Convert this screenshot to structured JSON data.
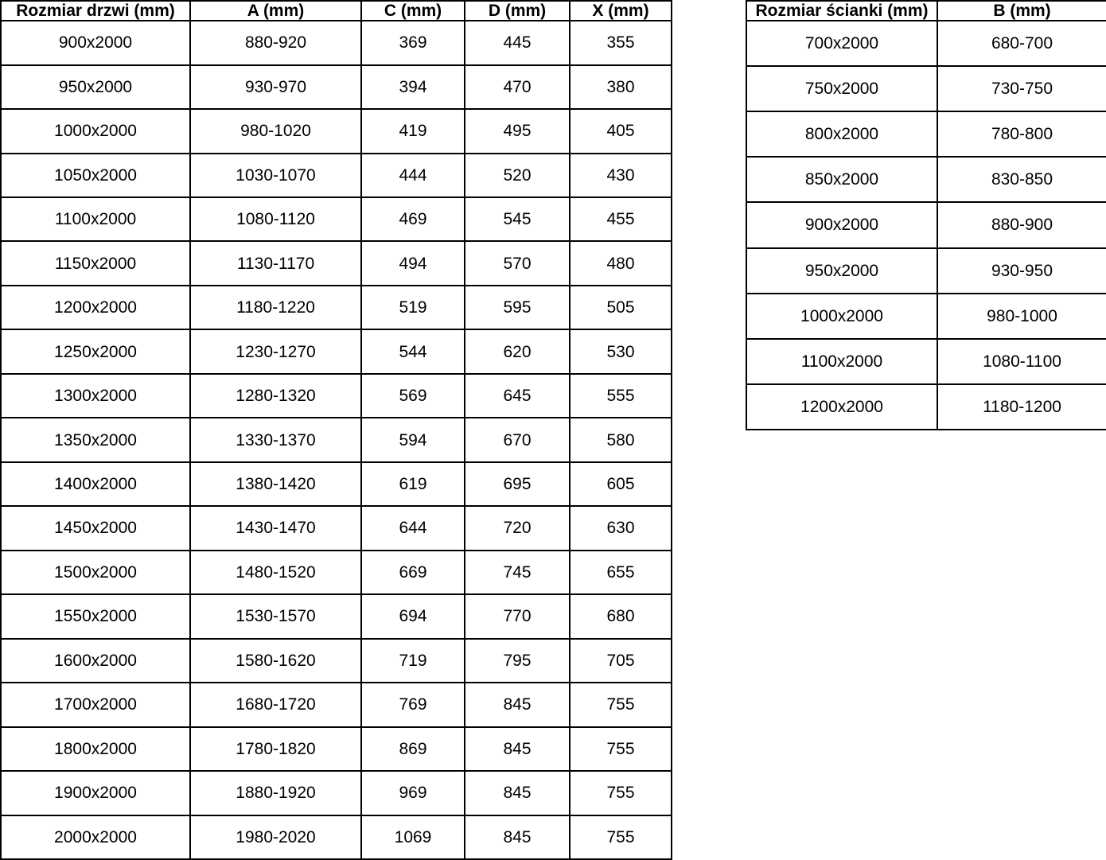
{
  "left_table": {
    "headers": [
      "Rozmiar drzwi (mm)",
      "A (mm)",
      "C (mm)",
      "D (mm)",
      "X (mm)"
    ],
    "rows": [
      [
        "900x2000",
        "880-920",
        "369",
        "445",
        "355"
      ],
      [
        "950x2000",
        "930-970",
        "394",
        "470",
        "380"
      ],
      [
        "1000x2000",
        "980-1020",
        "419",
        "495",
        "405"
      ],
      [
        "1050x2000",
        "1030-1070",
        "444",
        "520",
        "430"
      ],
      [
        "1100x2000",
        "1080-1120",
        "469",
        "545",
        "455"
      ],
      [
        "1150x2000",
        "1130-1170",
        "494",
        "570",
        "480"
      ],
      [
        "1200x2000",
        "1180-1220",
        "519",
        "595",
        "505"
      ],
      [
        "1250x2000",
        "1230-1270",
        "544",
        "620",
        "530"
      ],
      [
        "1300x2000",
        "1280-1320",
        "569",
        "645",
        "555"
      ],
      [
        "1350x2000",
        "1330-1370",
        "594",
        "670",
        "580"
      ],
      [
        "1400x2000",
        "1380-1420",
        "619",
        "695",
        "605"
      ],
      [
        "1450x2000",
        "1430-1470",
        "644",
        "720",
        "630"
      ],
      [
        "1500x2000",
        "1480-1520",
        "669",
        "745",
        "655"
      ],
      [
        "1550x2000",
        "1530-1570",
        "694",
        "770",
        "680"
      ],
      [
        "1600x2000",
        "1580-1620",
        "719",
        "795",
        "705"
      ],
      [
        "1700x2000",
        "1680-1720",
        "769",
        "845",
        "755"
      ],
      [
        "1800x2000",
        "1780-1820",
        "869",
        "845",
        "755"
      ],
      [
        "1900x2000",
        "1880-1920",
        "969",
        "845",
        "755"
      ],
      [
        "2000x2000",
        "1980-2020",
        "1069",
        "845",
        "755"
      ]
    ]
  },
  "right_table": {
    "headers": [
      "Rozmiar ścianki (mm)",
      "B (mm)"
    ],
    "rows": [
      [
        "700x2000",
        "680-700"
      ],
      [
        "750x2000",
        "730-750"
      ],
      [
        "800x2000",
        "780-800"
      ],
      [
        "850x2000",
        "830-850"
      ],
      [
        "900x2000",
        "880-900"
      ],
      [
        "950x2000",
        "930-950"
      ],
      [
        "1000x2000",
        "980-1000"
      ],
      [
        "1100x2000",
        "1080-1100"
      ],
      [
        "1200x2000",
        "1180-1200"
      ]
    ]
  },
  "colors": {
    "text": "#000000",
    "background": "#ffffff",
    "border": "#000000"
  }
}
